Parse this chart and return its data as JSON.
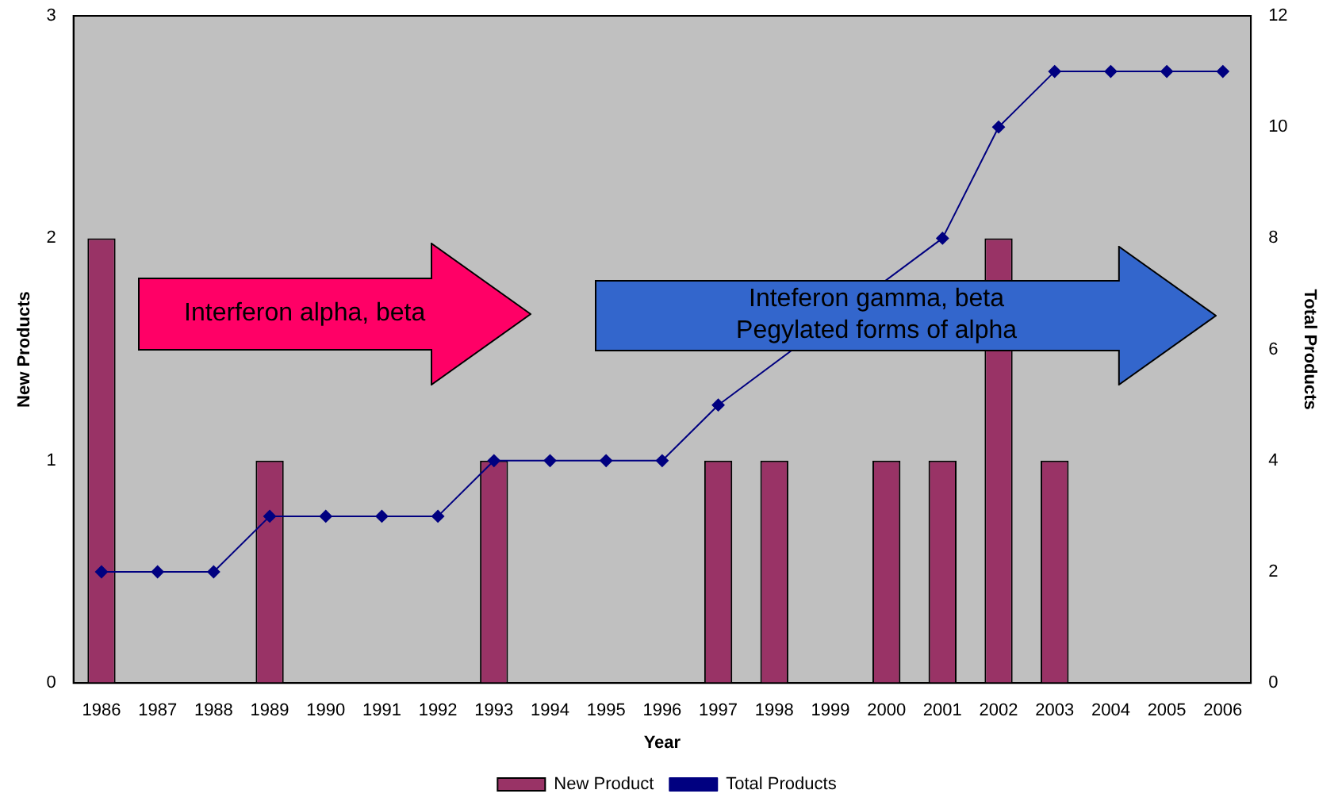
{
  "chart_data": {
    "type": "bar",
    "xlabel": "Year",
    "ylabel": "New Products",
    "y2label": "Total Products",
    "categories": [
      "1986",
      "1987",
      "1988",
      "1989",
      "1990",
      "1991",
      "1992",
      "1993",
      "1994",
      "1995",
      "1996",
      "1997",
      "1998",
      "1999",
      "2000",
      "2001",
      "2002",
      "2003",
      "2004",
      "2005",
      "2006"
    ],
    "series": [
      {
        "name": "New Product",
        "color": "#993366",
        "values": [
          2,
          0,
          0,
          1,
          0,
          0,
          0,
          1,
          0,
          0,
          0,
          1,
          1,
          0,
          1,
          1,
          2,
          1,
          0,
          0,
          0
        ]
      },
      {
        "name": "Total Products",
        "type": "line",
        "axis": "y2",
        "color": "#000080",
        "values": [
          2,
          2,
          2,
          3,
          3,
          3,
          3,
          4,
          4,
          4,
          4,
          5,
          null,
          null,
          null,
          8,
          10,
          11,
          11,
          11,
          11
        ]
      }
    ],
    "ylim": [
      0,
      3
    ],
    "yticks": [
      0,
      1,
      2,
      3
    ],
    "y2lim": [
      0,
      12
    ],
    "y2ticks": [
      0,
      2,
      4,
      6,
      8,
      10,
      12
    ],
    "marker": "diamond",
    "line_style": "solid",
    "legend": "bottom",
    "annotations": [
      "Interferon alpha, beta",
      "Inteferon gamma, beta\nPegylated forms of alpha"
    ]
  }
}
